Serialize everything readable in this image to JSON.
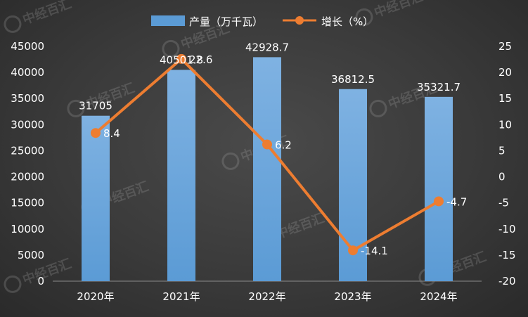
{
  "colors": {
    "bar": "#5b9bd5",
    "bar_light": "#7fb2e2",
    "line": "#ed7d31",
    "text": "#ffffff",
    "watermark": "#9a9a9a"
  },
  "watermark": {
    "text": "中经百汇"
  },
  "chart_data": {
    "type": "bar",
    "categories": [
      "2020年",
      "2021年",
      "2022年",
      "2023年",
      "2024年"
    ],
    "series": [
      {
        "name": "产量（万千瓦）",
        "kind": "bar",
        "axis": "left",
        "values": [
          31705,
          40501.8,
          42928.7,
          36812.5,
          35321.7
        ],
        "labels": [
          "31705",
          "40501.8",
          "42928.7",
          "36812.5",
          "35321.7"
        ]
      },
      {
        "name": "增长（%）",
        "kind": "line",
        "axis": "right",
        "values": [
          8.4,
          22.6,
          6.2,
          -14.1,
          -4.7
        ],
        "labels": [
          "8.4",
          "22.6",
          "6.2",
          "-14.1",
          "-4.7"
        ]
      }
    ],
    "y_left": {
      "lim": [
        0,
        45000
      ],
      "ticks": [
        0,
        5000,
        10000,
        15000,
        20000,
        25000,
        30000,
        35000,
        40000,
        45000
      ]
    },
    "y_right": {
      "lim": [
        -20,
        25
      ],
      "ticks": [
        -20,
        -15,
        -10,
        -5,
        0,
        5,
        10,
        15,
        20,
        25
      ]
    },
    "grid": false,
    "legend": "top-center"
  }
}
